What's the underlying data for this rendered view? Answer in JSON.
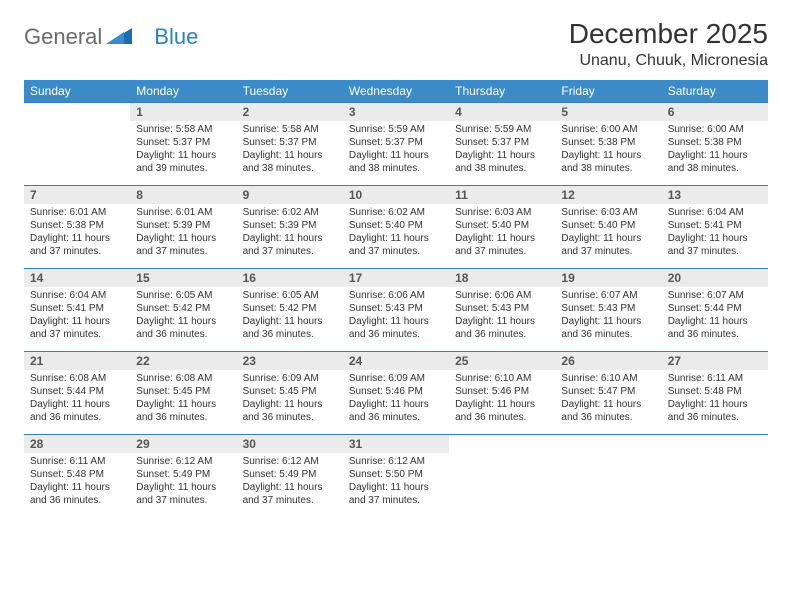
{
  "brand": {
    "part1": "General",
    "part2": "Blue"
  },
  "title": "December 2025",
  "location": "Unanu, Chuuk, Micronesia",
  "colors": {
    "header_bg": "#3b8bc9",
    "header_text": "#ffffff",
    "daynum_bg": "#ebebeb",
    "rule": "#2f7fc2",
    "text": "#333333",
    "page_bg": "#ffffff"
  },
  "typography": {
    "title_fontsize": 28,
    "location_fontsize": 16,
    "dow_fontsize": 12,
    "daynum_fontsize": 12,
    "body_fontsize": 10
  },
  "days_of_week": [
    "Sunday",
    "Monday",
    "Tuesday",
    "Wednesday",
    "Thursday",
    "Friday",
    "Saturday"
  ],
  "weeks": [
    [
      {
        "n": "",
        "sr": "",
        "ss": "",
        "dl": ""
      },
      {
        "n": "1",
        "sr": "Sunrise: 5:58 AM",
        "ss": "Sunset: 5:37 PM",
        "dl": "Daylight: 11 hours and 39 minutes."
      },
      {
        "n": "2",
        "sr": "Sunrise: 5:58 AM",
        "ss": "Sunset: 5:37 PM",
        "dl": "Daylight: 11 hours and 38 minutes."
      },
      {
        "n": "3",
        "sr": "Sunrise: 5:59 AM",
        "ss": "Sunset: 5:37 PM",
        "dl": "Daylight: 11 hours and 38 minutes."
      },
      {
        "n": "4",
        "sr": "Sunrise: 5:59 AM",
        "ss": "Sunset: 5:37 PM",
        "dl": "Daylight: 11 hours and 38 minutes."
      },
      {
        "n": "5",
        "sr": "Sunrise: 6:00 AM",
        "ss": "Sunset: 5:38 PM",
        "dl": "Daylight: 11 hours and 38 minutes."
      },
      {
        "n": "6",
        "sr": "Sunrise: 6:00 AM",
        "ss": "Sunset: 5:38 PM",
        "dl": "Daylight: 11 hours and 38 minutes."
      }
    ],
    [
      {
        "n": "7",
        "sr": "Sunrise: 6:01 AM",
        "ss": "Sunset: 5:38 PM",
        "dl": "Daylight: 11 hours and 37 minutes."
      },
      {
        "n": "8",
        "sr": "Sunrise: 6:01 AM",
        "ss": "Sunset: 5:39 PM",
        "dl": "Daylight: 11 hours and 37 minutes."
      },
      {
        "n": "9",
        "sr": "Sunrise: 6:02 AM",
        "ss": "Sunset: 5:39 PM",
        "dl": "Daylight: 11 hours and 37 minutes."
      },
      {
        "n": "10",
        "sr": "Sunrise: 6:02 AM",
        "ss": "Sunset: 5:40 PM",
        "dl": "Daylight: 11 hours and 37 minutes."
      },
      {
        "n": "11",
        "sr": "Sunrise: 6:03 AM",
        "ss": "Sunset: 5:40 PM",
        "dl": "Daylight: 11 hours and 37 minutes."
      },
      {
        "n": "12",
        "sr": "Sunrise: 6:03 AM",
        "ss": "Sunset: 5:40 PM",
        "dl": "Daylight: 11 hours and 37 minutes."
      },
      {
        "n": "13",
        "sr": "Sunrise: 6:04 AM",
        "ss": "Sunset: 5:41 PM",
        "dl": "Daylight: 11 hours and 37 minutes."
      }
    ],
    [
      {
        "n": "14",
        "sr": "Sunrise: 6:04 AM",
        "ss": "Sunset: 5:41 PM",
        "dl": "Daylight: 11 hours and 37 minutes."
      },
      {
        "n": "15",
        "sr": "Sunrise: 6:05 AM",
        "ss": "Sunset: 5:42 PM",
        "dl": "Daylight: 11 hours and 36 minutes."
      },
      {
        "n": "16",
        "sr": "Sunrise: 6:05 AM",
        "ss": "Sunset: 5:42 PM",
        "dl": "Daylight: 11 hours and 36 minutes."
      },
      {
        "n": "17",
        "sr": "Sunrise: 6:06 AM",
        "ss": "Sunset: 5:43 PM",
        "dl": "Daylight: 11 hours and 36 minutes."
      },
      {
        "n": "18",
        "sr": "Sunrise: 6:06 AM",
        "ss": "Sunset: 5:43 PM",
        "dl": "Daylight: 11 hours and 36 minutes."
      },
      {
        "n": "19",
        "sr": "Sunrise: 6:07 AM",
        "ss": "Sunset: 5:43 PM",
        "dl": "Daylight: 11 hours and 36 minutes."
      },
      {
        "n": "20",
        "sr": "Sunrise: 6:07 AM",
        "ss": "Sunset: 5:44 PM",
        "dl": "Daylight: 11 hours and 36 minutes."
      }
    ],
    [
      {
        "n": "21",
        "sr": "Sunrise: 6:08 AM",
        "ss": "Sunset: 5:44 PM",
        "dl": "Daylight: 11 hours and 36 minutes."
      },
      {
        "n": "22",
        "sr": "Sunrise: 6:08 AM",
        "ss": "Sunset: 5:45 PM",
        "dl": "Daylight: 11 hours and 36 minutes."
      },
      {
        "n": "23",
        "sr": "Sunrise: 6:09 AM",
        "ss": "Sunset: 5:45 PM",
        "dl": "Daylight: 11 hours and 36 minutes."
      },
      {
        "n": "24",
        "sr": "Sunrise: 6:09 AM",
        "ss": "Sunset: 5:46 PM",
        "dl": "Daylight: 11 hours and 36 minutes."
      },
      {
        "n": "25",
        "sr": "Sunrise: 6:10 AM",
        "ss": "Sunset: 5:46 PM",
        "dl": "Daylight: 11 hours and 36 minutes."
      },
      {
        "n": "26",
        "sr": "Sunrise: 6:10 AM",
        "ss": "Sunset: 5:47 PM",
        "dl": "Daylight: 11 hours and 36 minutes."
      },
      {
        "n": "27",
        "sr": "Sunrise: 6:11 AM",
        "ss": "Sunset: 5:48 PM",
        "dl": "Daylight: 11 hours and 36 minutes."
      }
    ],
    [
      {
        "n": "28",
        "sr": "Sunrise: 6:11 AM",
        "ss": "Sunset: 5:48 PM",
        "dl": "Daylight: 11 hours and 36 minutes."
      },
      {
        "n": "29",
        "sr": "Sunrise: 6:12 AM",
        "ss": "Sunset: 5:49 PM",
        "dl": "Daylight: 11 hours and 37 minutes."
      },
      {
        "n": "30",
        "sr": "Sunrise: 6:12 AM",
        "ss": "Sunset: 5:49 PM",
        "dl": "Daylight: 11 hours and 37 minutes."
      },
      {
        "n": "31",
        "sr": "Sunrise: 6:12 AM",
        "ss": "Sunset: 5:50 PM",
        "dl": "Daylight: 11 hours and 37 minutes."
      },
      {
        "n": "",
        "sr": "",
        "ss": "",
        "dl": ""
      },
      {
        "n": "",
        "sr": "",
        "ss": "",
        "dl": ""
      },
      {
        "n": "",
        "sr": "",
        "ss": "",
        "dl": ""
      }
    ]
  ]
}
